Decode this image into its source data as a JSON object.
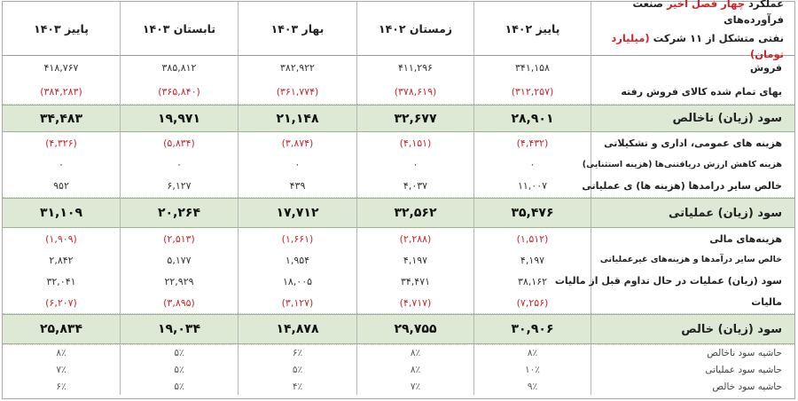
{
  "header": {
    "title_line1_pre": "عملکرد ",
    "title_line1_red": "چهار فصل اخیر",
    "title_line1_post": " صنعت فرآورده‌های",
    "title_line2_pre": "نفتی متشکل از ۱۱ شرکت ",
    "title_line2_red": "(میلیارد تومان)",
    "columns": [
      "پاییز ۱۴۰۲",
      "زمستان ۱۴۰۲",
      "بهار ۱۴۰۳",
      "تابستان ۱۴۰۳",
      "پاییز ۱۴۰۳"
    ]
  },
  "groups": [
    {
      "style": "plain",
      "rows": [
        {
          "label": "فروش",
          "values": [
            "۳۴۱,۱۵۸",
            "۴۱۱,۲۹۶",
            "۳۸۲,۹۲۲",
            "۳۸۵,۸۱۲",
            "۴۱۸,۷۶۷"
          ],
          "negative": false
        },
        {
          "label": "بهای تمام شده کالای فروش رفته",
          "values": [
            "(۳۱۲,۲۵۷)",
            "(۳۷۸,۶۱۹)",
            "(۳۶۱,۷۷۴)",
            "(۳۶۵,۸۴۰)",
            "(۳۸۴,۲۸۳)"
          ],
          "negative": true
        }
      ]
    },
    {
      "style": "green",
      "rows": [
        {
          "label": "سود (زیان) ناخالص",
          "values": [
            "۲۸,۹۰۱",
            "۳۲,۶۷۷",
            "۲۱,۱۴۸",
            "۱۹,۹۷۱",
            "۳۴,۴۸۳"
          ],
          "negative": false
        }
      ]
    },
    {
      "style": "plain",
      "rows": [
        {
          "label": "هزینه های عمومی، اداری و تشکیلاتی",
          "values": [
            "(۴,۴۳۲)",
            "(۴,۱۵۱)",
            "(۳,۸۷۴)",
            "(۵,۸۳۴)",
            "(۴,۳۲۶)"
          ],
          "negative": true,
          "size": "normal"
        },
        {
          "label": "هزینه کاهش ارزش دریافتنی‌ها (هزینه استثنایی)",
          "values": [
            "۰",
            "۰",
            "۰",
            "۰",
            "۰"
          ],
          "negative": false,
          "size": "small"
        },
        {
          "label": "خالص سایر درامدها (هزینه ها) ی عملیاتی",
          "values": [
            "۱۱,۰۰۷",
            "۴,۰۳۷",
            "۴۳۹",
            "۶,۱۲۷",
            "۹۵۲"
          ],
          "negative": false,
          "size": "normal"
        }
      ]
    },
    {
      "style": "green",
      "rows": [
        {
          "label": "سود (زیان) عملیاتی",
          "values": [
            "۳۵,۴۷۶",
            "۳۲,۵۶۲",
            "۱۷,۷۱۲",
            "۲۰,۲۶۴",
            "۳۱,۱۰۹"
          ],
          "negative": false
        }
      ]
    },
    {
      "style": "plain",
      "rows": [
        {
          "label": "هزینه‌های مالی",
          "values": [
            "(۱,۵۱۲)",
            "(۲,۲۸۸)",
            "(۱,۶۶۱)",
            "(۲,۵۱۳)",
            "(۱,۹۰۹)"
          ],
          "negative": true,
          "size": "normal"
        },
        {
          "label": "خالص سایر درآمدها و هزینه‌های غیرعملیاتی",
          "values": [
            "۴,۱۹۷",
            "۴,۱۹۷",
            "۱,۹۵۴",
            "۵,۱۷۷",
            "۲,۸۴۲"
          ],
          "negative": false,
          "size": "small"
        },
        {
          "label": "سود (زیان) عملیات در حال تداوم قبل از مالیات",
          "values": [
            "۳۸,۱۶۲",
            "۳۴,۴۷۱",
            "۱۸,۰۰۵",
            "۲۲,۹۲۹",
            "۳۲,۰۴۱"
          ],
          "negative": false,
          "size": "normal"
        },
        {
          "label": "مالیات",
          "values": [
            "(۷,۲۵۶)",
            "(۴,۷۱۷)",
            "(۳,۱۲۷)",
            "(۳,۸۹۵)",
            "(۶,۲۰۷)"
          ],
          "negative": true,
          "size": "normal"
        }
      ]
    },
    {
      "style": "green",
      "rows": [
        {
          "label": "سود (زیان) خالص",
          "values": [
            "۳۰,۹۰۶",
            "۲۹,۷۵۵",
            "۱۴,۸۷۸",
            "۱۹,۰۳۴",
            "۲۵,۸۳۴"
          ],
          "negative": false
        }
      ]
    },
    {
      "style": "light",
      "rows": [
        {
          "label": "حاشیه سود ناخالص",
          "values": [
            "۸٪",
            "۸٪",
            "۶٪",
            "۵٪",
            "۸٪"
          ],
          "negative": false
        },
        {
          "label": "حاشیه سود عملیاتی",
          "values": [
            "۱۰٪",
            "۸٪",
            "۵٪",
            "۵٪",
            "۷٪"
          ],
          "negative": false
        },
        {
          "label": "حاشیه سود خالص",
          "values": [
            "۹٪",
            "۷٪",
            "۴٪",
            "۵٪",
            "۶٪"
          ],
          "negative": false
        }
      ]
    }
  ]
}
